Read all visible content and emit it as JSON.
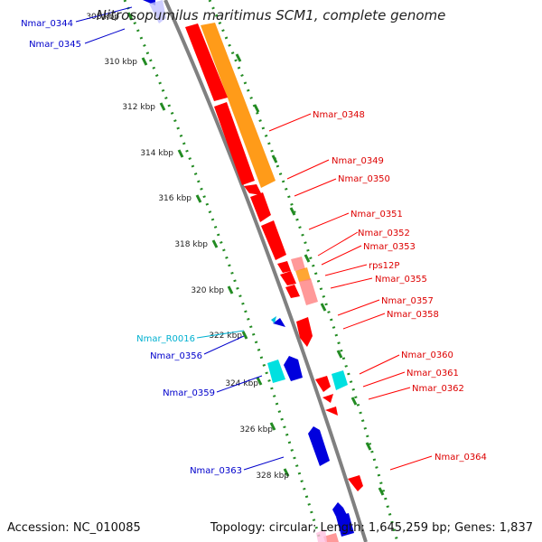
{
  "header": {
    "title": "Nitrosopumilus maritimus SCM1, complete genome"
  },
  "footer": {
    "accession": "Accession: NC_010085",
    "summary": "Topology: circular; Length: 1,645,259 bp; Genes: 1,837"
  },
  "colors": {
    "backbone": "#808080",
    "tick": "#228B22",
    "forward_cds": "#ff0000",
    "reverse_cds": "#0000dd",
    "forward_rna": "#ff9000",
    "reverse_rna": "#00e0e0",
    "forward_label": "#dd0000",
    "reverse_label": "#0000cc",
    "rna_label": "#00b0d0"
  },
  "ruler": [
    {
      "label": "308 kbp"
    },
    {
      "label": "310 kbp"
    },
    {
      "label": "312 kbp"
    },
    {
      "label": "314 kbp"
    },
    {
      "label": "316 kbp"
    },
    {
      "label": "318 kbp"
    },
    {
      "label": "320 kbp"
    },
    {
      "label": "322 kbp"
    },
    {
      "label": "324 kbp"
    },
    {
      "label": "326 kbp"
    },
    {
      "label": "328 kbp"
    }
  ],
  "gene_labels": {
    "forward": [
      "Nmar_0348",
      "Nmar_0349",
      "Nmar_0350",
      "Nmar_0351",
      "Nmar_0352",
      "Nmar_0353",
      "rps12P",
      "Nmar_0355",
      "Nmar_0357",
      "Nmar_0358",
      "Nmar_0360",
      "Nmar_0361",
      "Nmar_0362",
      "Nmar_0364"
    ],
    "reverse": [
      "Nmar_0344",
      "Nmar_0345",
      "Nmar_R0016",
      "Nmar_0356",
      "Nmar_0359",
      "Nmar_0363"
    ]
  }
}
